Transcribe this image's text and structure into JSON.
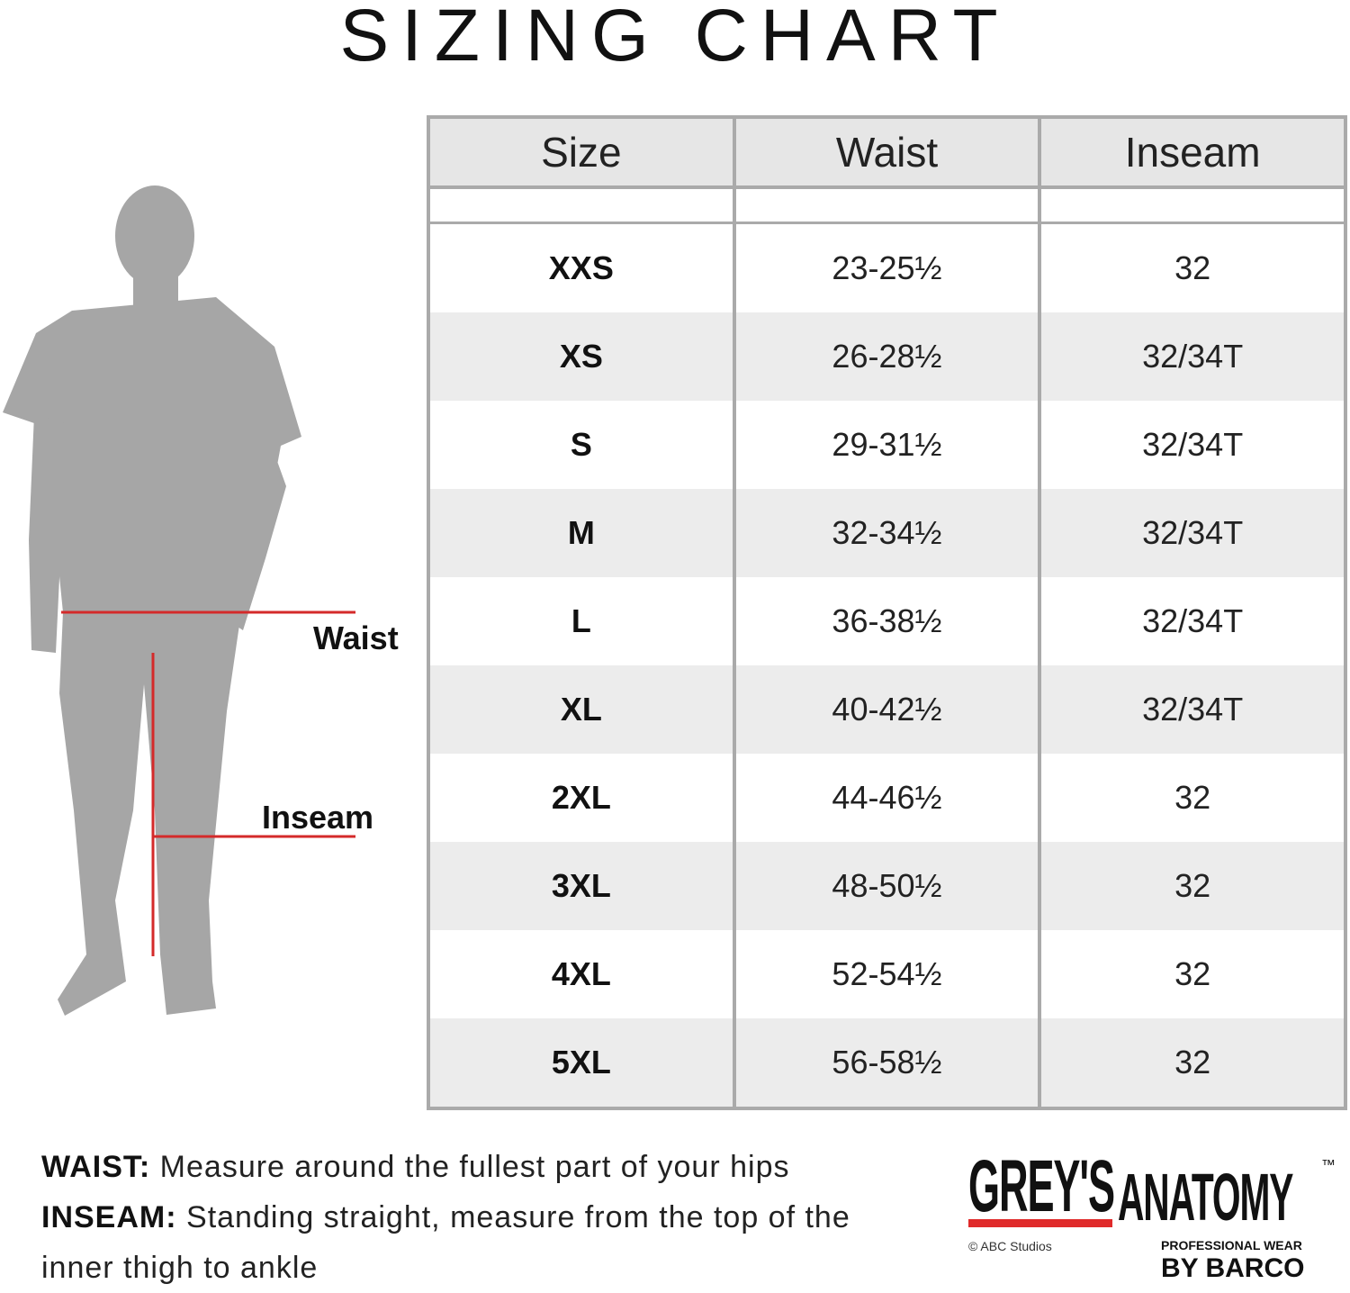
{
  "title": "SIZING CHART",
  "table": {
    "header": [
      "Size",
      "Waist",
      "Inseam"
    ],
    "rows": [
      [
        "XXS",
        "23-25½",
        "32"
      ],
      [
        "XS",
        "26-28½",
        "32/34T"
      ],
      [
        "S",
        "29-31½",
        "32/34T"
      ],
      [
        "M",
        "32-34½",
        "32/34T"
      ],
      [
        "L",
        "36-38½",
        "32/34T"
      ],
      [
        "XL",
        "40-42½",
        "32/34T"
      ],
      [
        "2XL",
        "44-46½",
        "32"
      ],
      [
        "3XL",
        "48-50½",
        "32"
      ],
      [
        "4XL",
        "52-54½",
        "32"
      ],
      [
        "5XL",
        "56-58½",
        "32"
      ]
    ]
  },
  "figure": {
    "waist_label": "Waist",
    "inseam_label": "Inseam"
  },
  "notes": [
    {
      "label": "WAIST:",
      "text": "Measure around the fullest part of your hips"
    },
    {
      "label": "INSEAM:",
      "text": "Standing straight, measure from the top of the inner thigh to ankle"
    }
  ],
  "logo": {
    "brand_first": "GREY'S",
    "brand_second": "ANATOMY",
    "trademark": "™",
    "copyright": "© ABC Studios",
    "tagline": "PROFESSIONAL WEAR",
    "maker": "BY BARCO"
  }
}
